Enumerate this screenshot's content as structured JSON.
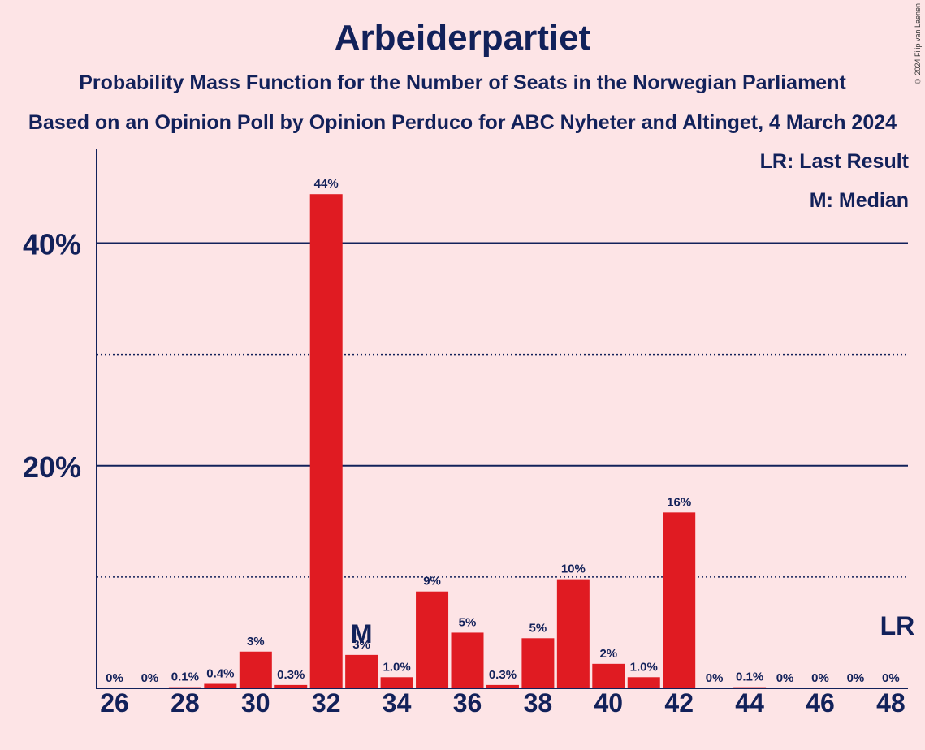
{
  "title": "Arbeiderpartiet",
  "subtitle": "Probability Mass Function for the Number of Seats in the Norwegian Parliament",
  "subtitle2": "Based on an Opinion Poll by Opinion Perduco for ABC Nyheter and Altinget, 4 March 2024",
  "copyright": "© 2024 Filip van Laenen",
  "legend": {
    "last_result": "LR: Last Result",
    "median": "M: Median"
  },
  "colors": {
    "bar": "#E01B22",
    "text": "#12215A",
    "background": "#FDE4E6"
  },
  "chart_data": {
    "type": "bar",
    "x": [
      26,
      27,
      28,
      29,
      30,
      31,
      32,
      33,
      34,
      35,
      36,
      37,
      38,
      39,
      40,
      41,
      42,
      43,
      44,
      45,
      46,
      47,
      48
    ],
    "values": [
      0,
      0,
      0.1,
      0.4,
      3.3,
      0.3,
      44.4,
      3.0,
      1.0,
      8.7,
      5.0,
      0.3,
      4.5,
      9.8,
      2.2,
      1.0,
      15.8,
      0,
      0.1,
      0,
      0,
      0,
      0
    ],
    "labels": [
      "0%",
      "0%",
      "0.1%",
      "0.4%",
      "3%",
      "0.3%",
      "44%",
      "3%",
      "1.0%",
      "9%",
      "5%",
      "0.3%",
      "5%",
      "10%",
      "2%",
      "1.0%",
      "16%",
      "0%",
      "0.1%",
      "0%",
      "0%",
      "0%",
      "0%"
    ],
    "x_tick_labels": [
      "26",
      "28",
      "30",
      "32",
      "34",
      "36",
      "38",
      "40",
      "42",
      "44",
      "46",
      "48"
    ],
    "y_tick_labels": [
      "20%",
      "40%"
    ],
    "y_ticks": [
      20,
      40
    ],
    "y_minor_gridlines": [
      10,
      30
    ],
    "ylim": [
      0,
      48.5
    ],
    "median_seat": 33,
    "median_marker": "M",
    "last_result_seat": 48,
    "last_result_marker": "LR",
    "legend_placement": "top-right"
  }
}
